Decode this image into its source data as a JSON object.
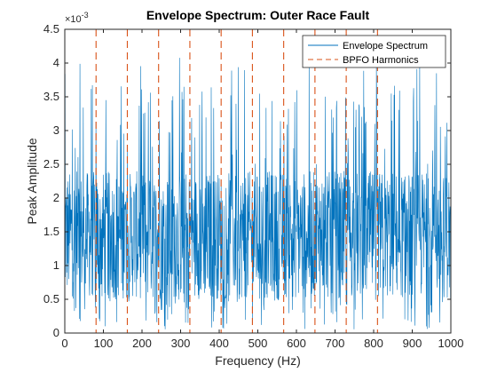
{
  "chart_data": {
    "type": "line",
    "title": "Envelope Spectrum: Outer Race Fault",
    "xlabel": "Frequency (Hz)",
    "ylabel": "Peak Amplitude",
    "y_exponent_label": "×10",
    "y_exponent_power": "-3",
    "xlim": [
      0,
      1000
    ],
    "ylim": [
      0,
      0.0045
    ],
    "x_ticks": [
      0,
      100,
      200,
      300,
      400,
      500,
      600,
      700,
      800,
      900,
      1000
    ],
    "x_tick_labels": [
      "0",
      "100",
      "200",
      "300",
      "400",
      "500",
      "600",
      "700",
      "800",
      "900",
      "1000"
    ],
    "y_ticks": [
      0,
      0.0005,
      0.001,
      0.0015,
      0.002,
      0.0025,
      0.003,
      0.0035,
      0.004,
      0.0045
    ],
    "y_tick_labels": [
      "0",
      "0.5",
      "1",
      "1.5",
      "2",
      "2.5",
      "3",
      "3.5",
      "4",
      "4.5"
    ],
    "grid": false,
    "legend_position": "top-right",
    "series": [
      {
        "name": "Envelope Spectrum",
        "color": "#0072BD",
        "style": "solid",
        "description_of_values": "dense noise, mostly 0.0005–0.0025, peaks up to ~0.0041"
      },
      {
        "name": "BPFO Harmonics",
        "color": "#D95319",
        "style": "dashed",
        "x": [
          81,
          162,
          243,
          324,
          405,
          486,
          567,
          648,
          729,
          810
        ]
      }
    ]
  }
}
